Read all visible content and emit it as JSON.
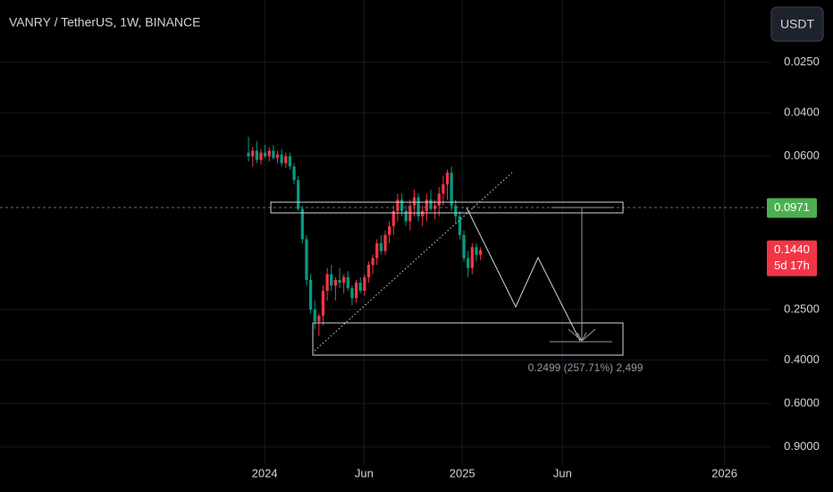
{
  "chart_data": {
    "type": "candlestick",
    "title": "VANRY / TetherUS, 1W, BINANCE",
    "currency_button": "USDT",
    "log_scale": true,
    "inverted_scale": true,
    "grid": true,
    "up_color": "#089981",
    "down_color": "#f23645",
    "x": [
      0,
      1,
      2,
      3,
      4,
      5,
      6,
      7,
      8,
      9,
      10,
      11,
      12,
      13,
      14,
      15,
      16,
      17,
      18,
      19,
      20,
      21,
      22,
      23,
      24,
      25,
      26,
      27,
      28,
      29,
      30,
      31,
      32,
      33,
      34,
      35,
      36,
      37,
      38,
      39,
      40,
      41,
      42,
      43,
      44,
      45,
      46,
      47,
      48,
      49,
      50,
      51,
      52,
      53,
      54,
      55,
      56
    ],
    "open": [
      0.058,
      0.06,
      0.057,
      0.062,
      0.058,
      0.06,
      0.057,
      0.061,
      0.059,
      0.064,
      0.06,
      0.066,
      0.075,
      0.098,
      0.13,
      0.19,
      0.25,
      0.28,
      0.265,
      0.21,
      0.18,
      0.2,
      0.19,
      0.195,
      0.185,
      0.205,
      0.225,
      0.195,
      0.21,
      0.185,
      0.165,
      0.155,
      0.135,
      0.145,
      0.125,
      0.115,
      0.1,
      0.09,
      0.1,
      0.11,
      0.095,
      0.088,
      0.105,
      0.1,
      0.09,
      0.098,
      0.095,
      0.085,
      0.078,
      0.07,
      0.095,
      0.105,
      0.125,
      0.155,
      0.17,
      0.14,
      0.15
    ],
    "high": [
      0.063,
      0.066,
      0.064,
      0.065,
      0.061,
      0.063,
      0.062,
      0.064,
      0.066,
      0.067,
      0.068,
      0.078,
      0.1,
      0.135,
      0.2,
      0.26,
      0.3,
      0.32,
      0.29,
      0.23,
      0.21,
      0.23,
      0.205,
      0.215,
      0.21,
      0.24,
      0.235,
      0.215,
      0.22,
      0.195,
      0.18,
      0.165,
      0.15,
      0.15,
      0.135,
      0.125,
      0.11,
      0.105,
      0.115,
      0.12,
      0.105,
      0.11,
      0.115,
      0.11,
      0.1,
      0.108,
      0.105,
      0.095,
      0.09,
      0.1,
      0.112,
      0.13,
      0.16,
      0.185,
      0.18,
      0.16,
      0.158
    ],
    "low": [
      0.05,
      0.055,
      0.052,
      0.056,
      0.054,
      0.055,
      0.054,
      0.057,
      0.056,
      0.058,
      0.058,
      0.064,
      0.072,
      0.095,
      0.125,
      0.18,
      0.23,
      0.26,
      0.2,
      0.17,
      0.165,
      0.185,
      0.17,
      0.18,
      0.175,
      0.2,
      0.19,
      0.185,
      0.18,
      0.16,
      0.15,
      0.13,
      0.125,
      0.12,
      0.11,
      0.095,
      0.085,
      0.085,
      0.095,
      0.09,
      0.082,
      0.085,
      0.095,
      0.085,
      0.082,
      0.09,
      0.08,
      0.072,
      0.068,
      0.066,
      0.09,
      0.1,
      0.12,
      0.145,
      0.135,
      0.135,
      0.14
    ],
    "close": [
      0.06,
      0.057,
      0.062,
      0.058,
      0.06,
      0.057,
      0.061,
      0.059,
      0.064,
      0.06,
      0.066,
      0.075,
      0.098,
      0.13,
      0.19,
      0.25,
      0.28,
      0.265,
      0.21,
      0.18,
      0.2,
      0.19,
      0.195,
      0.185,
      0.205,
      0.225,
      0.195,
      0.21,
      0.185,
      0.165,
      0.155,
      0.135,
      0.145,
      0.125,
      0.115,
      0.1,
      0.09,
      0.1,
      0.11,
      0.095,
      0.088,
      0.105,
      0.1,
      0.09,
      0.098,
      0.095,
      0.085,
      0.078,
      0.07,
      0.095,
      0.105,
      0.125,
      0.155,
      0.17,
      0.14,
      0.15,
      0.144
    ],
    "xlim": [
      -60,
      126
    ],
    "xticks": [
      {
        "value": 3.9,
        "label": "2024"
      },
      {
        "value": 27.9,
        "label": "Jun"
      },
      {
        "value": 51.6,
        "label": "2025"
      },
      {
        "value": 75.8,
        "label": "Jun"
      },
      {
        "value": 114.9,
        "label": "2026"
      }
    ],
    "ylim": [
      0.014,
      1.066
    ],
    "yticks": [
      {
        "value": 0.025,
        "label": "0.0250"
      },
      {
        "value": 0.04,
        "label": "0.0400"
      },
      {
        "value": 0.06,
        "label": "0.0600"
      },
      {
        "value": 0.25,
        "label": "0.2500"
      },
      {
        "value": 0.4,
        "label": "0.4000"
      },
      {
        "value": 0.6,
        "label": "0.6000"
      },
      {
        "value": 0.9,
        "label": "0.9000"
      }
    ],
    "price_labels": [
      {
        "value": 0.0971,
        "label": "0.0971",
        "color": "#4caf50"
      },
      {
        "value": 0.144,
        "label": "0.1440",
        "countdown": "5d 17h",
        "color": "#f23645"
      }
    ],
    "measure_label": "0.2499 (257.71%) 2,499"
  }
}
